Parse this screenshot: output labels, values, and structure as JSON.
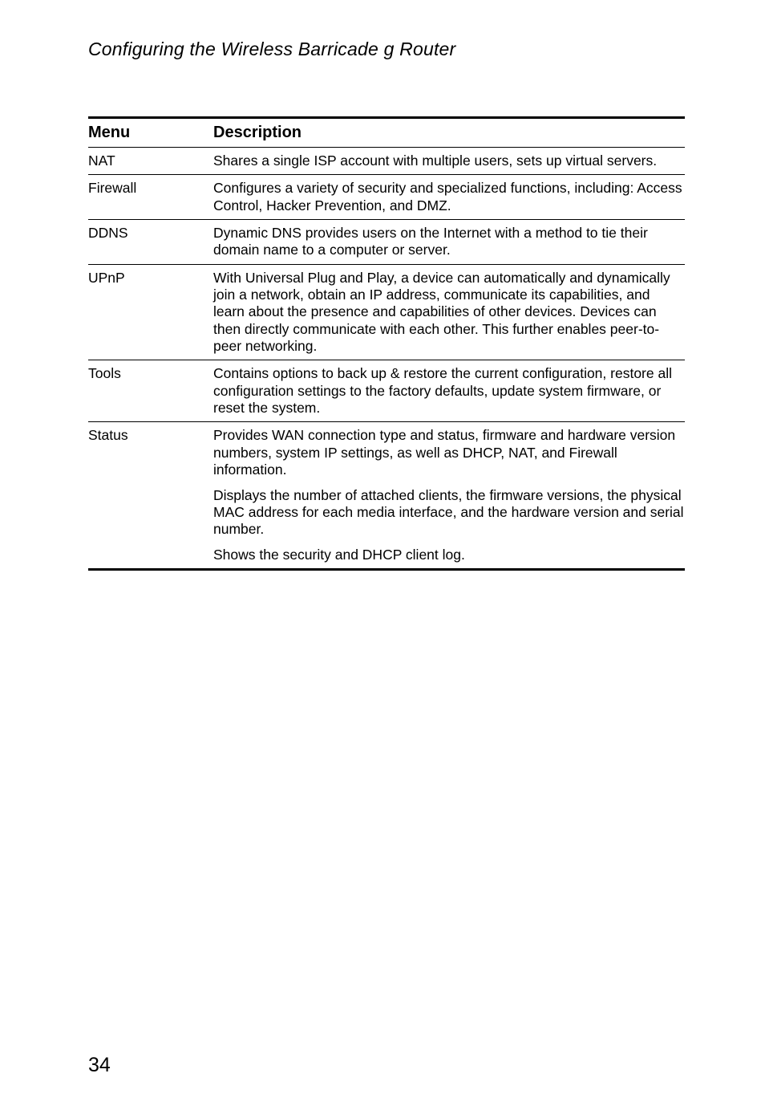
{
  "page": {
    "running_title": "Configuring the Wireless Barricade g Router",
    "page_number": "34"
  },
  "table": {
    "header": {
      "menu": "Menu",
      "description": "Description"
    },
    "rows": [
      {
        "menu": "NAT",
        "paragraphs": [
          "Shares a single ISP account with multiple users, sets up virtual servers."
        ]
      },
      {
        "menu": "Firewall",
        "paragraphs": [
          "Configures a variety of security and specialized functions, including: Access Control, Hacker Prevention, and DMZ."
        ]
      },
      {
        "menu": "DDNS",
        "paragraphs": [
          "Dynamic DNS provides users on the Internet with a method to tie their domain name to a computer or server."
        ]
      },
      {
        "menu": "UPnP",
        "paragraphs": [
          "With Universal Plug and Play, a device can automatically and dynamically join a network, obtain an IP address, communicate its capabilities, and learn about the presence and capabilities of other devices. Devices can then directly communicate with each other. This further enables peer-to-peer networking."
        ]
      },
      {
        "menu": "Tools",
        "paragraphs": [
          "Contains options to back up & restore the current configuration, restore all configuration settings to the factory defaults, update system firmware, or reset the system."
        ]
      },
      {
        "menu": "Status",
        "paragraphs": [
          "Provides WAN connection type and status, firmware and hardware version numbers, system IP settings, as well as DHCP, NAT, and Firewall information.",
          "Displays the number of attached clients, the firmware versions, the physical MAC address for each media interface, and the hardware version and serial number.",
          "Shows the security and DHCP client log."
        ]
      }
    ]
  }
}
